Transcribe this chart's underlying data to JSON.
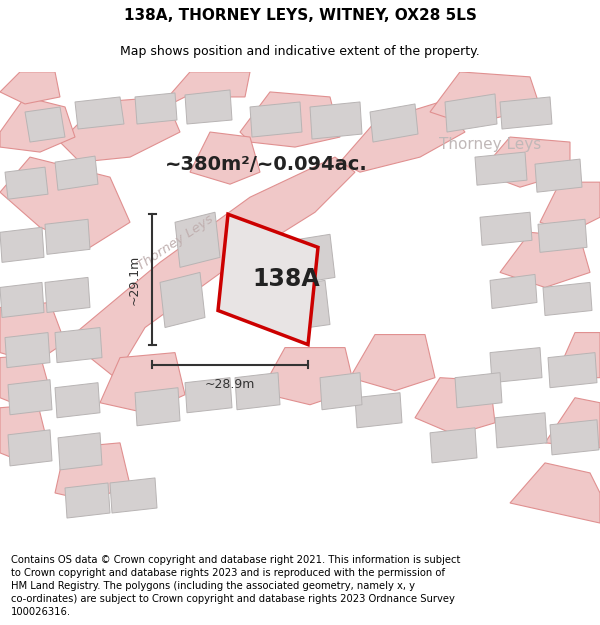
{
  "title": "138A, THORNEY LEYS, WITNEY, OX28 5LS",
  "subtitle": "Map shows position and indicative extent of the property.",
  "footer": "Contains OS data © Crown copyright and database right 2021. This information is subject to Crown copyright and database rights 2023 and is reproduced with the permission of HM Land Registry. The polygons (including the associated geometry, namely x, y co-ordinates) are subject to Crown copyright and database rights 2023 Ordnance Survey 100026316.",
  "area_label": "~380m²/~0.094ac.",
  "property_label": "138A",
  "width_label": "~28.9m",
  "height_label": "~29.1m",
  "street_label_map": "Thorney Leys",
  "street_label_top": "Thorney Leys",
  "map_bg": "#f5efef",
  "plot_color": "#cc0000",
  "building_fill": "#d4d0d0",
  "building_edge": "#b8b4b4",
  "road_fill": "#f0c8c8",
  "road_edge": "#e09090",
  "title_fontsize": 11,
  "subtitle_fontsize": 9,
  "footer_fontsize": 7.2,
  "dim_color": "#333333",
  "label_color": "#222222",
  "street_map_color": "#c0b0b0",
  "street_top_color": "#c0b8b8"
}
